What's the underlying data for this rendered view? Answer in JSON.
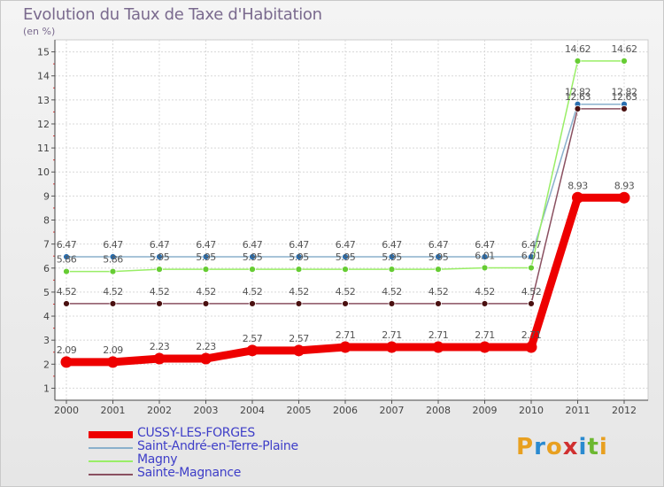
{
  "title": "Evolution du Taux de Taxe d'Habitation",
  "unit_label": "(en %)",
  "logo_text": "Proxiti",
  "chart_data": {
    "type": "line",
    "title": "Evolution du Taux de Taxe d'Habitation",
    "ylabel": "(en %)",
    "xlabel": "",
    "x": [
      "2000",
      "2001",
      "2002",
      "2003",
      "2004",
      "2005",
      "2006",
      "2007",
      "2008",
      "2009",
      "2010",
      "2011",
      "2012"
    ],
    "ylim": [
      0.5,
      15.5
    ],
    "yticks": [
      1,
      2,
      3,
      4,
      5,
      6,
      7,
      8,
      9,
      10,
      11,
      12,
      13,
      14,
      15
    ],
    "grid": true,
    "legend": "bottom-left",
    "series": [
      {
        "name": "CUSSY-LES-FORGES",
        "color": "#ee0000",
        "marker": "#ee0000",
        "values": [
          2.09,
          2.09,
          2.23,
          2.23,
          2.57,
          2.57,
          2.71,
          2.71,
          2.71,
          2.71,
          2.71,
          8.93,
          8.93
        ],
        "labels": [
          "2.09",
          "2.09",
          "2.23",
          "2.23",
          "2.57",
          "2.57",
          "2.71",
          "2.71",
          "2.71",
          "2.71",
          "2.71",
          "8.93",
          "8.93"
        ]
      },
      {
        "name": "Saint-André-en-Terre-Plaine",
        "color": "#8ab0cc",
        "marker": "#2a6fb0",
        "values": [
          6.47,
          6.47,
          6.47,
          6.47,
          6.47,
          6.47,
          6.47,
          6.47,
          6.47,
          6.47,
          6.47,
          12.82,
          12.82
        ],
        "labels": [
          "6.47",
          "6.47",
          "6.47",
          "6.47",
          "6.47",
          "6.47",
          "6.47",
          "6.47",
          "6.47",
          "6.47",
          "6.47",
          "12.82",
          "12.82"
        ]
      },
      {
        "name": "Magny",
        "color": "#99ee66",
        "marker": "#66cc33",
        "values": [
          5.86,
          5.86,
          5.95,
          5.95,
          5.95,
          5.95,
          5.95,
          5.95,
          5.95,
          6.01,
          6.01,
          14.62,
          14.62
        ],
        "labels": [
          "5.86",
          "5.86",
          "5.95",
          "5.95",
          "5.95",
          "5.95",
          "5.95",
          "5.95",
          "5.95",
          "6.01",
          "6.01",
          "14.62",
          "14.62"
        ]
      },
      {
        "name": "Sainte-Magnance",
        "color": "#8a5060",
        "marker": "#4a1010",
        "values": [
          4.52,
          4.52,
          4.52,
          4.52,
          4.52,
          4.52,
          4.52,
          4.52,
          4.52,
          4.52,
          4.52,
          12.63,
          12.63
        ],
        "labels": [
          "4.52",
          "4.52",
          "4.52",
          "4.52",
          "4.52",
          "4.52",
          "4.52",
          "4.52",
          "4.52",
          "4.52",
          "4.52",
          "12.63",
          "12.63"
        ]
      }
    ]
  }
}
